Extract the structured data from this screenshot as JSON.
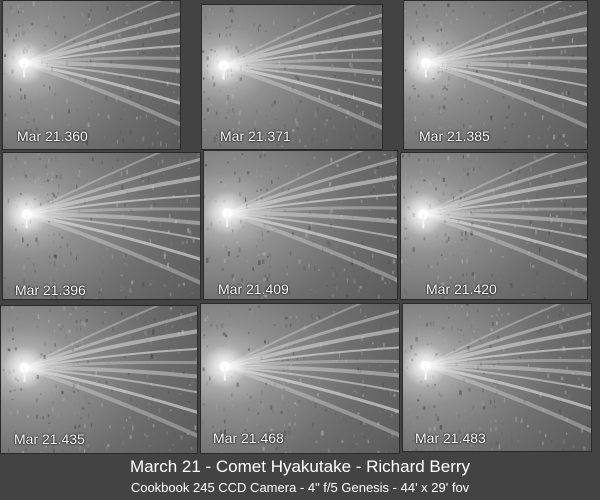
{
  "frames": [
    {
      "label": "Mar 21.360"
    },
    {
      "label": "Mar 21.371"
    },
    {
      "label": "Mar 21.385"
    },
    {
      "label": "Mar 21.396"
    },
    {
      "label": "Mar 21.409"
    },
    {
      "label": "Mar 21.420"
    },
    {
      "label": "Mar 21.435"
    },
    {
      "label": "Mar 21.468"
    },
    {
      "label": "Mar 21.483"
    }
  ],
  "caption": {
    "title": "March 21 - Comet Hyakutake - Richard Berry",
    "subtitle": "Cookbook 245 CCD Camera - 4\" f/5 Genesis - 44' x 29' fov"
  }
}
